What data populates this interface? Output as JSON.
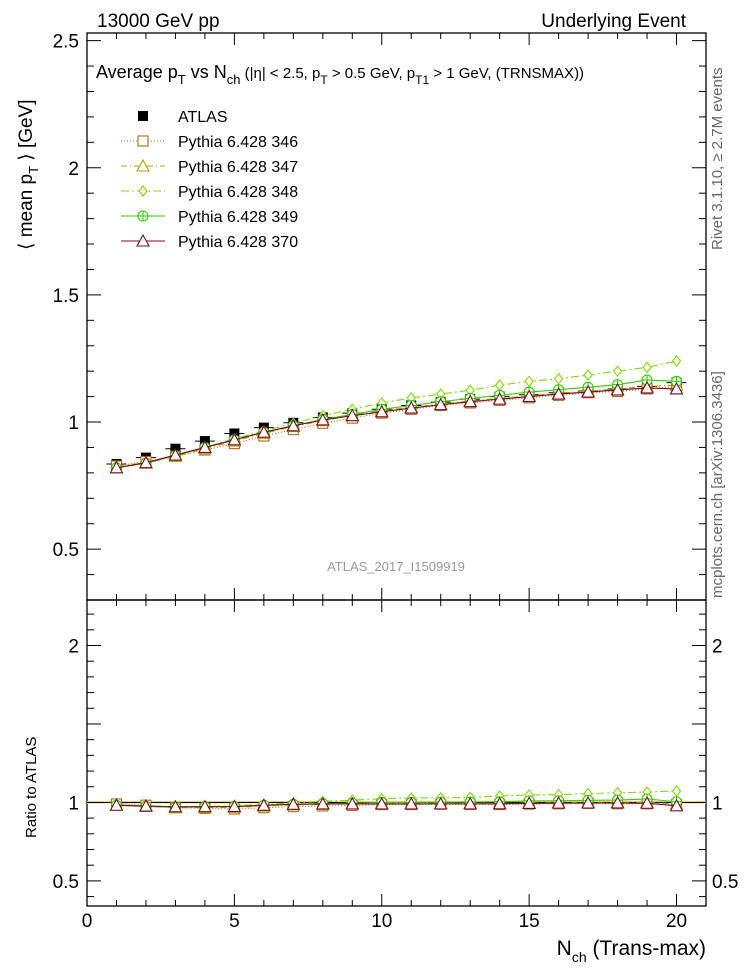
{
  "header": {
    "left": "13000 GeV pp",
    "right": "Underlying Event"
  },
  "side_labels": {
    "rivet": "Rivet 3.1.10, ≥ 2.7M events",
    "mcplots": "mcplots.cern.ch [arXiv:1306.3436]"
  },
  "watermark": "ATLAS_2017_I1509919",
  "chart_data": {
    "type": "line",
    "title": "Average p_T vs N_ch (|η| < 2.5, p_T > 0.5 GeV, p_T1 > 1 GeV, (TRNSMAX))",
    "title_parts": {
      "a": "Average p",
      "a_sub": "T",
      "b": " vs N",
      "b_sub": "ch",
      "c": " (|η| < 2.5, p",
      "c_sub": "T",
      "d": " > 0.5 GeV, p",
      "d_sub": "T1",
      "e": " > 1 GeV, (TRNSMAX))"
    },
    "ylabel": "⟨ mean p_T ⟩ [GeV]",
    "ylabel_parts": {
      "a": "⟨ mean p",
      "sub": "T",
      "b": " ⟩ [GeV]"
    },
    "ratio_ylabel": "Ratio to ATLAS",
    "xlabel": "N_ch (Trans-max)",
    "xlabel_parts": {
      "a": "N",
      "sub": "ch",
      "b": " (Trans-max)"
    },
    "xlim": [
      0,
      21
    ],
    "ylim": [
      0.3,
      2.53
    ],
    "ratio_ylim": [
      0.34,
      2.29
    ],
    "x_ticks": [
      0,
      5,
      10,
      15,
      20
    ],
    "x_tick_labels": [
      "0",
      "5",
      "10",
      "15",
      "20"
    ],
    "y_ticks": [
      0.5,
      1,
      1.5,
      2,
      2.5
    ],
    "y_tick_labels": [
      "0.5",
      "1",
      "1.5",
      "2",
      "2.5"
    ],
    "ratio_y_ticks": [
      0.5,
      1,
      2
    ],
    "ratio_y_tick_labels": [
      "0.5",
      "1",
      "2"
    ],
    "legend_position": "top-left",
    "x": [
      1,
      2,
      3,
      4,
      5,
      6,
      7,
      8,
      9,
      10,
      11,
      12,
      13,
      14,
      15,
      16,
      17,
      18,
      19,
      20
    ],
    "data": {
      "name": "ATLAS",
      "color": "#000000",
      "values": [
        0.835,
        0.86,
        0.895,
        0.925,
        0.955,
        0.978,
        0.997,
        1.018,
        1.035,
        1.05,
        1.065,
        1.078,
        1.09,
        1.1,
        1.107,
        1.115,
        1.122,
        1.13,
        1.14,
        1.155
      ]
    },
    "series": [
      {
        "name": "Pythia 6.428 346",
        "color": "#b5651d",
        "marker": "square",
        "dash": "1,2",
        "values": [
          0.827,
          0.845,
          0.865,
          0.89,
          0.915,
          0.945,
          0.97,
          0.995,
          1.015,
          1.035,
          1.05,
          1.065,
          1.075,
          1.085,
          1.095,
          1.105,
          1.115,
          1.12,
          1.13,
          1.14
        ]
      },
      {
        "name": "Pythia 6.428 347",
        "color": "#a8a800",
        "marker": "triangle",
        "dash": "6,3,1,3",
        "values": [
          0.82,
          0.838,
          0.865,
          0.895,
          0.925,
          0.955,
          0.982,
          1.005,
          1.027,
          1.045,
          1.058,
          1.07,
          1.083,
          1.093,
          1.103,
          1.113,
          1.122,
          1.13,
          1.14,
          1.145
        ]
      },
      {
        "name": "Pythia 6.428 348",
        "color": "#7fdc00",
        "marker": "diamond",
        "dash": "8,3,2,3",
        "values": [
          0.825,
          0.84,
          0.87,
          0.9,
          0.935,
          0.965,
          0.995,
          1.025,
          1.05,
          1.075,
          1.095,
          1.11,
          1.125,
          1.145,
          1.16,
          1.17,
          1.185,
          1.2,
          1.215,
          1.24
        ]
      },
      {
        "name": "Pythia 6.428 349",
        "color": "#33cc00",
        "marker": "crosscircle",
        "dash": "",
        "values": [
          0.82,
          0.838,
          0.868,
          0.9,
          0.93,
          0.96,
          0.985,
          1.01,
          1.03,
          1.05,
          1.065,
          1.08,
          1.093,
          1.105,
          1.118,
          1.127,
          1.137,
          1.147,
          1.165,
          1.16
        ]
      },
      {
        "name": "Pythia 6.428 370",
        "color": "#7a0a2a",
        "marker": "triangle",
        "dash": "",
        "values": [
          0.82,
          0.84,
          0.87,
          0.9,
          0.93,
          0.96,
          0.985,
          1.008,
          1.025,
          1.04,
          1.055,
          1.068,
          1.08,
          1.09,
          1.1,
          1.11,
          1.118,
          1.126,
          1.134,
          1.13
        ]
      }
    ]
  }
}
